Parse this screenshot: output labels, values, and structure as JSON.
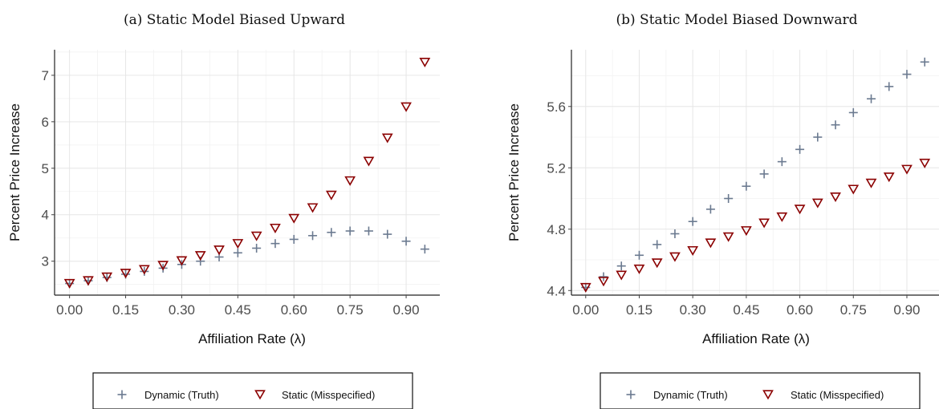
{
  "colors": {
    "dynamic": "#6b7a90",
    "static": "#8b0000"
  },
  "chart_data": [
    {
      "type": "scatter",
      "title": "(a) Static Model Biased Upward",
      "xlabel": "Affiliation Rate  (λ)",
      "ylabel": "Percent Price Increase",
      "xlim": [
        -0.04,
        0.99
      ],
      "ylim": [
        2.27,
        7.55
      ],
      "xticks": [
        0.0,
        0.15,
        0.3,
        0.45,
        0.6,
        0.75,
        0.9
      ],
      "xtick_labels": [
        "0.00",
        "0.15",
        "0.30",
        "0.45",
        "0.60",
        "0.75",
        "0.90"
      ],
      "yticks": [
        3,
        4,
        5,
        6,
        7
      ],
      "ytick_labels": [
        "3",
        "4",
        "5",
        "6",
        "7"
      ],
      "grid": true,
      "legend_placement": "bottom",
      "x": [
        0.0,
        0.05,
        0.1,
        0.15,
        0.2,
        0.25,
        0.3,
        0.35,
        0.4,
        0.45,
        0.5,
        0.55,
        0.6,
        0.65,
        0.7,
        0.75,
        0.8,
        0.85,
        0.9,
        0.95
      ],
      "series": [
        {
          "name": "Dynamic (Truth)",
          "marker": "plus",
          "values": [
            2.52,
            2.58,
            2.65,
            2.72,
            2.78,
            2.85,
            2.93,
            3.0,
            3.09,
            3.18,
            3.28,
            3.38,
            3.47,
            3.55,
            3.62,
            3.65,
            3.65,
            3.58,
            3.43,
            3.26
          ]
        },
        {
          "name": "Static (Misspecified)",
          "marker": "triangle-down",
          "values": [
            2.52,
            2.58,
            2.66,
            2.74,
            2.82,
            2.91,
            3.01,
            3.12,
            3.24,
            3.38,
            3.54,
            3.71,
            3.92,
            4.15,
            4.42,
            4.73,
            5.15,
            5.65,
            6.32,
            7.28
          ]
        }
      ]
    },
    {
      "type": "scatter",
      "title": "(b) Static Model Biased Downward",
      "xlabel": "Affiliation Rate  (λ)",
      "ylabel": "Percent Price Increase",
      "xlim": [
        -0.04,
        0.99
      ],
      "ylim": [
        4.37,
        5.97
      ],
      "xticks": [
        0.0,
        0.15,
        0.3,
        0.45,
        0.6,
        0.75,
        0.9
      ],
      "xtick_labels": [
        "0.00",
        "0.15",
        "0.30",
        "0.45",
        "0.60",
        "0.75",
        "0.90"
      ],
      "yticks": [
        4.4,
        4.8,
        5.2,
        5.6
      ],
      "ytick_labels": [
        "4.4",
        "4.8",
        "5.2",
        "5.6"
      ],
      "grid": true,
      "legend_placement": "bottom",
      "x": [
        0.0,
        0.05,
        0.1,
        0.15,
        0.2,
        0.25,
        0.3,
        0.35,
        0.4,
        0.45,
        0.5,
        0.55,
        0.6,
        0.65,
        0.7,
        0.75,
        0.8,
        0.85,
        0.9,
        0.95
      ],
      "series": [
        {
          "name": "Dynamic (Truth)",
          "marker": "plus",
          "values": [
            4.42,
            4.49,
            4.56,
            4.63,
            4.7,
            4.77,
            4.85,
            4.93,
            5.0,
            5.08,
            5.16,
            5.24,
            5.32,
            5.4,
            5.48,
            5.56,
            5.65,
            5.73,
            5.81,
            5.89
          ]
        },
        {
          "name": "Static (Misspecified)",
          "marker": "triangle-down",
          "values": [
            4.42,
            4.46,
            4.5,
            4.54,
            4.58,
            4.62,
            4.66,
            4.71,
            4.75,
            4.79,
            4.84,
            4.88,
            4.93,
            4.97,
            5.01,
            5.06,
            5.1,
            5.14,
            5.19,
            5.23
          ]
        }
      ]
    }
  ]
}
